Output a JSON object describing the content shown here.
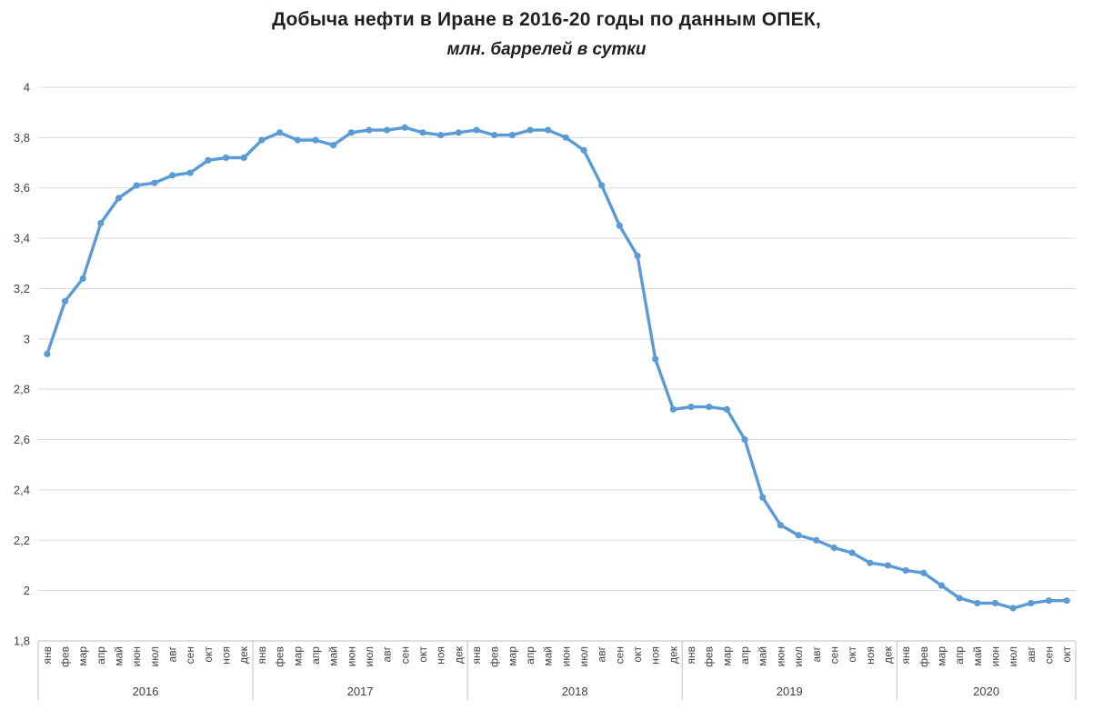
{
  "chart_data": {
    "type": "line",
    "title": "Добыча нефти в Иране в 2016-20 годы по данным ОПЕК,",
    "subtitle": "млн. баррелей в сутки",
    "ylabel": "",
    "xlabel": "",
    "ylim": [
      1.8,
      4
    ],
    "ytick_values": [
      4,
      3.8,
      3.6,
      3.4,
      3.2,
      3,
      2.8,
      2.6,
      2.4,
      2.2,
      2,
      1.8
    ],
    "ytick_labels": [
      "4",
      "3,8",
      "3,6",
      "3,4",
      "3,2",
      "3",
      "2,8",
      "2,6",
      "2,4",
      "2,2",
      "2",
      "1,8"
    ],
    "month_labels": [
      "янв",
      "фев",
      "мар",
      "апр",
      "май",
      "июн",
      "июл",
      "авг",
      "сен",
      "окт",
      "ноя",
      "дек"
    ],
    "grid": true,
    "legend": "none",
    "marker": "circle",
    "series_color": "#5B9BD5",
    "gridline_color": "#D9D9D9",
    "axis_line_color": "#BFBFBF",
    "text_color": "#404040",
    "years": [
      {
        "year": "2016",
        "months": 12,
        "values": [
          2.94,
          3.15,
          3.24,
          3.46,
          3.56,
          3.61,
          3.62,
          3.65,
          3.66,
          3.71,
          3.72,
          3.72
        ]
      },
      {
        "year": "2017",
        "months": 12,
        "values": [
          3.79,
          3.82,
          3.79,
          3.79,
          3.77,
          3.82,
          3.83,
          3.83,
          3.84,
          3.82,
          3.81,
          3.82
        ]
      },
      {
        "year": "2018",
        "months": 12,
        "values": [
          3.83,
          3.81,
          3.81,
          3.83,
          3.83,
          3.8,
          3.75,
          3.61,
          3.45,
          3.33,
          2.92,
          2.72
        ]
      },
      {
        "year": "2019",
        "months": 12,
        "values": [
          2.73,
          2.73,
          2.72,
          2.6,
          2.37,
          2.26,
          2.22,
          2.2,
          2.17,
          2.15,
          2.11,
          2.1
        ]
      },
      {
        "year": "2020",
        "months": 10,
        "values": [
          2.08,
          2.07,
          2.02,
          1.97,
          1.95,
          1.95,
          1.93,
          1.95,
          1.96,
          1.96
        ]
      }
    ]
  }
}
